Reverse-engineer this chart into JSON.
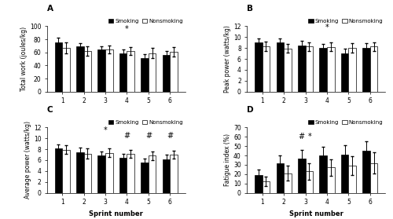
{
  "A": {
    "title": "A",
    "ylabel": "Total work (joules/kg)",
    "ylim": [
      0,
      100
    ],
    "yticks": [
      0,
      20,
      40,
      60,
      80,
      100
    ],
    "smoking": [
      75,
      69,
      64,
      59,
      51,
      56
    ],
    "nonsmoking": [
      67,
      62,
      64,
      62,
      59,
      61
    ],
    "smoking_err": [
      7,
      5,
      5,
      5,
      6,
      6
    ],
    "nonsmoking_err": [
      8,
      7,
      6,
      6,
      8,
      7
    ],
    "annotations": [
      {
        "sprint": 4,
        "text": "*",
        "y": 90
      }
    ]
  },
  "B": {
    "title": "B",
    "ylabel": "Peak power (watts/kg)",
    "ylim": [
      0,
      12
    ],
    "yticks": [
      0,
      2,
      4,
      6,
      8,
      10,
      12
    ],
    "smoking": [
      9.0,
      9.0,
      8.5,
      8.0,
      7.0,
      8.1
    ],
    "nonsmoking": [
      8.3,
      7.9,
      8.3,
      8.2,
      8.0,
      8.3
    ],
    "smoking_err": [
      0.8,
      0.7,
      0.8,
      0.7,
      0.9,
      0.8
    ],
    "nonsmoking_err": [
      0.9,
      0.8,
      0.8,
      0.8,
      0.9,
      0.8
    ],
    "annotations": [
      {
        "sprint": 4,
        "text": "*",
        "y": 11.0
      }
    ]
  },
  "C": {
    "title": "C",
    "ylabel": "Average power (watts/kg)",
    "xlabel": "Sprint number",
    "ylim": [
      0,
      12
    ],
    "yticks": [
      0,
      2,
      4,
      6,
      8,
      10,
      12
    ],
    "smoking": [
      8.2,
      7.5,
      6.9,
      6.4,
      5.6,
      6.2
    ],
    "nonsmoking": [
      7.9,
      7.2,
      7.3,
      7.1,
      6.8,
      7.0
    ],
    "smoking_err": [
      0.7,
      0.8,
      0.7,
      0.7,
      0.7,
      0.8
    ],
    "nonsmoking_err": [
      0.8,
      0.9,
      0.8,
      0.7,
      0.8,
      0.7
    ],
    "annotations": [
      {
        "sprint": 3,
        "text": "*",
        "y": 10.8
      },
      {
        "sprint": 4,
        "text": "#",
        "y": 9.8
      },
      {
        "sprint": 5,
        "text": "#",
        "y": 9.8
      },
      {
        "sprint": 6,
        "text": "#",
        "y": 9.8
      }
    ]
  },
  "D": {
    "title": "D",
    "ylabel": "Fatigue index (%)",
    "xlabel": "Sprint number",
    "ylim": [
      0,
      70
    ],
    "yticks": [
      0,
      10,
      20,
      30,
      40,
      50,
      60,
      70
    ],
    "smoking": [
      19,
      32,
      37,
      40,
      41,
      45
    ],
    "nonsmoking": [
      12,
      21,
      23,
      27,
      29,
      32
    ],
    "smoking_err": [
      6,
      8,
      9,
      9,
      10,
      10
    ],
    "nonsmoking_err": [
      5,
      8,
      9,
      9,
      10,
      11
    ],
    "annotations": [
      {
        "sprint": 3,
        "text": "#",
        "y": 56,
        "xoff": -0.2
      },
      {
        "sprint": 3,
        "text": "*",
        "y": 56,
        "xoff": 0.2
      }
    ]
  },
  "bar_width": 0.35,
  "smoking_color": "#000000",
  "nonsmoking_color": "#ffffff",
  "legend_smoking": "Smoking",
  "legend_nonsmoking": "Nonsmoking"
}
